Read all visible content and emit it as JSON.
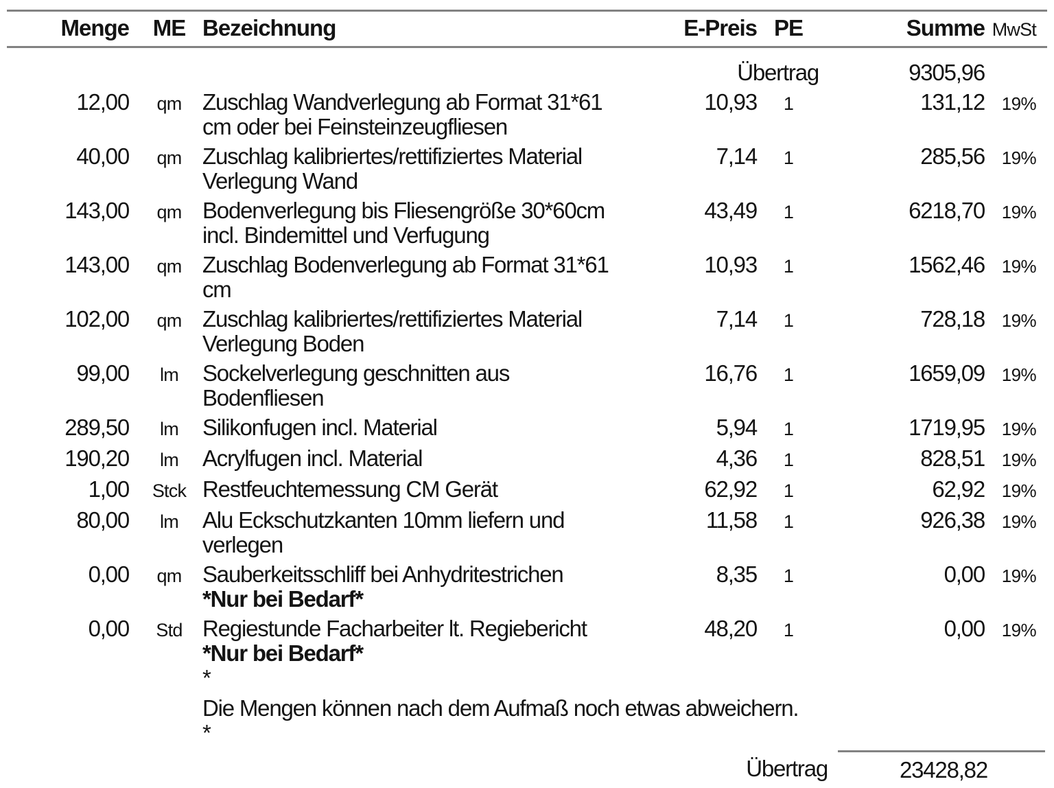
{
  "colors": {
    "text": "#141414",
    "rule_gray": "#828282"
  },
  "table": {
    "headers": {
      "menge": "Menge",
      "me": "ME",
      "bezeichnung": "Bezeichnung",
      "epreis": "E-Preis",
      "pe": "PE",
      "summe": "Summe",
      "mwst": "MwSt"
    },
    "carry_forward_top": {
      "label": "Übertrag",
      "value": "9305,96"
    },
    "rows": [
      {
        "menge": "12,00",
        "me": "qm",
        "lines": [
          {
            "text": "Zuschlag Wandverlegung ab Format 31*61",
            "bold": false
          },
          {
            "text": "cm oder bei Feinsteinzeugfliesen",
            "bold": false
          }
        ],
        "epreis": "10,93",
        "pe": "1",
        "summe": "131,12",
        "mwst": "19%"
      },
      {
        "menge": "40,00",
        "me": "qm",
        "lines": [
          {
            "text": "Zuschlag kalibriertes/rettifiziertes Material",
            "bold": false
          },
          {
            "text": "Verlegung Wand",
            "bold": false
          }
        ],
        "epreis": "7,14",
        "pe": "1",
        "summe": "285,56",
        "mwst": "19%"
      },
      {
        "menge": "143,00",
        "me": "qm",
        "lines": [
          {
            "text": "Bodenverlegung bis Fliesengröße 30*60cm",
            "bold": false
          },
          {
            "text": "incl. Bindemittel und Verfugung",
            "bold": false
          }
        ],
        "epreis": "43,49",
        "pe": "1",
        "summe": "6218,70",
        "mwst": "19%"
      },
      {
        "menge": "143,00",
        "me": "qm",
        "lines": [
          {
            "text": "Zuschlag Bodenverlegung ab Format 31*61",
            "bold": false
          },
          {
            "text": "cm",
            "bold": false
          }
        ],
        "epreis": "10,93",
        "pe": "1",
        "summe": "1562,46",
        "mwst": "19%"
      },
      {
        "menge": "102,00",
        "me": "qm",
        "lines": [
          {
            "text": "Zuschlag kalibriertes/rettifiziertes Material",
            "bold": false
          },
          {
            "text": "Verlegung Boden",
            "bold": false
          }
        ],
        "epreis": "7,14",
        "pe": "1",
        "summe": "728,18",
        "mwst": "19%"
      },
      {
        "menge": "99,00",
        "me": "lm",
        "lines": [
          {
            "text": "Sockelverlegung geschnitten aus",
            "bold": false
          },
          {
            "text": "Bodenfliesen",
            "bold": false
          }
        ],
        "epreis": "16,76",
        "pe": "1",
        "summe": "1659,09",
        "mwst": "19%"
      },
      {
        "menge": "289,50",
        "me": "lm",
        "lines": [
          {
            "text": "Silikonfugen incl. Material",
            "bold": false
          }
        ],
        "epreis": "5,94",
        "pe": "1",
        "summe": "1719,95",
        "mwst": "19%"
      },
      {
        "menge": "190,20",
        "me": "lm",
        "lines": [
          {
            "text": "Acrylfugen incl. Material",
            "bold": false
          }
        ],
        "epreis": "4,36",
        "pe": "1",
        "summe": "828,51",
        "mwst": "19%"
      },
      {
        "menge": "1,00",
        "me": "Stck",
        "lines": [
          {
            "text": "Restfeuchtemessung CM Gerät",
            "bold": false
          }
        ],
        "epreis": "62,92",
        "pe": "1",
        "summe": "62,92",
        "mwst": "19%"
      },
      {
        "menge": "80,00",
        "me": "lm",
        "lines": [
          {
            "text": "Alu Eckschutzkanten 10mm liefern und",
            "bold": false
          },
          {
            "text": "verlegen",
            "bold": false
          }
        ],
        "epreis": "11,58",
        "pe": "1",
        "summe": "926,38",
        "mwst": "19%"
      },
      {
        "menge": "0,00",
        "me": "qm",
        "lines": [
          {
            "text": "Sauberkeitsschliff bei Anhydritestrichen",
            "bold": false
          },
          {
            "text": "*Nur bei Bedarf*",
            "bold": true
          }
        ],
        "epreis": "8,35",
        "pe": "1",
        "summe": "0,00",
        "mwst": "19%"
      },
      {
        "menge": "0,00",
        "me": "Std",
        "lines": [
          {
            "text": "Regiestunde Facharbeiter lt. Regiebericht",
            "bold": false
          },
          {
            "text": "*Nur bei Bedarf*",
            "bold": true
          },
          {
            "text": "*",
            "bold": false
          }
        ],
        "epreis": "48,20",
        "pe": "1",
        "summe": "0,00",
        "mwst": "19%"
      }
    ],
    "remark": {
      "lines": [
        "Die Mengen können nach dem Aufmaß noch etwas abweichern.",
        "*"
      ]
    },
    "carry_forward_bottom": {
      "label": "Übertrag",
      "value": "23428,82"
    }
  }
}
